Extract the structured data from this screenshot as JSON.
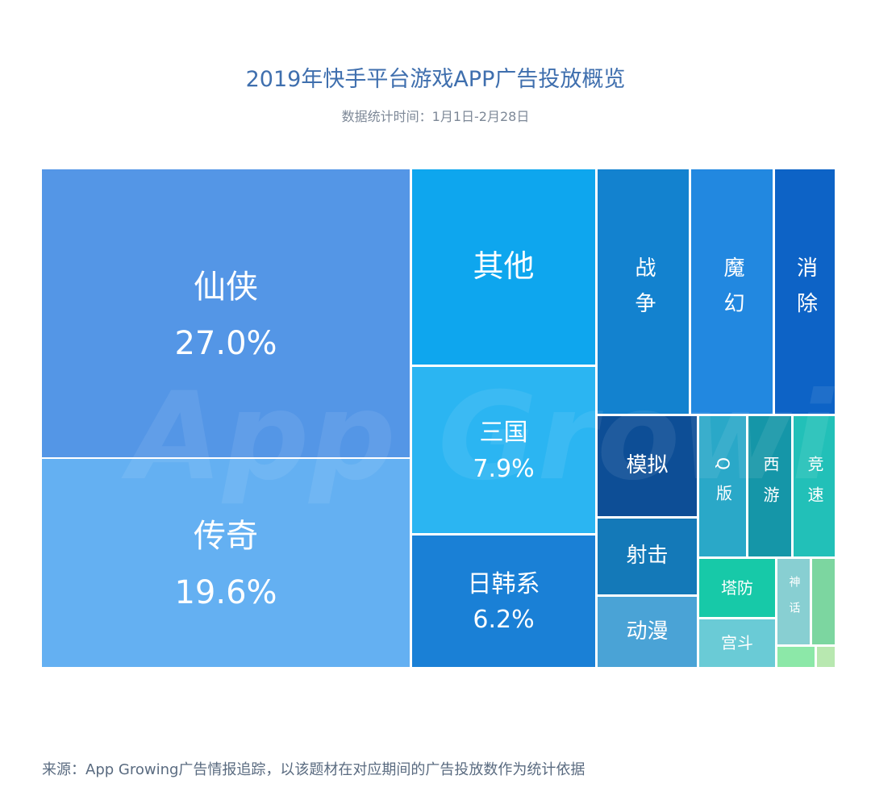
{
  "chart_data": {
    "type": "treemap",
    "title": "2019年快手平台游戏APP广告投放概览",
    "subtitle": "数据统计时间：1月1日-2月28日",
    "unit": "%",
    "items": [
      {
        "name": "仙侠",
        "value": 27.0,
        "label": "27.0%",
        "color": "#5496e6"
      },
      {
        "name": "传奇",
        "value": 19.6,
        "label": "19.6%",
        "color": "#64b0f2"
      },
      {
        "name": "其他",
        "value": 9.1,
        "label": "",
        "color": "#0ea6ee"
      },
      {
        "name": "三国",
        "value": 7.9,
        "label": "7.9%",
        "color": "#2bb5f2"
      },
      {
        "name": "日韩系",
        "value": 6.2,
        "label": "6.2%",
        "color": "#1a80d6"
      },
      {
        "name": "战争",
        "value": 5.6,
        "label": "",
        "color": "#1382cf"
      },
      {
        "name": "魔幻",
        "value": 5.0,
        "label": "",
        "color": "#2288e0"
      },
      {
        "name": "消除",
        "value": 3.7,
        "label": "",
        "color": "#0d63c6"
      },
      {
        "name": "模拟",
        "value": 2.5,
        "label": "",
        "color": "#0d4e96"
      },
      {
        "name": "射击",
        "value": 1.9,
        "label": "",
        "color": "#1479b8"
      },
      {
        "name": "动漫",
        "value": 1.8,
        "label": "",
        "color": "#4aa3d6"
      },
      {
        "name": "Q版",
        "value": 1.7,
        "label": "",
        "color": "#2aa8c8"
      },
      {
        "name": "西游",
        "value": 1.5,
        "label": "",
        "color": "#1596a8"
      },
      {
        "name": "竞速",
        "value": 1.5,
        "label": "",
        "color": "#22c0b8"
      },
      {
        "name": "塔防",
        "value": 1.1,
        "label": "",
        "color": "#17c9a8"
      },
      {
        "name": "宫斗",
        "value": 0.9,
        "label": "",
        "color": "#6acbd6"
      },
      {
        "name": "神话",
        "value": 0.7,
        "label": "",
        "color": "#88cfd2"
      },
      {
        "name": "",
        "value": 0.5,
        "label": "",
        "color": "#7cd6a0"
      },
      {
        "name": "",
        "value": 0.2,
        "label": "",
        "color": "#8ce8a8"
      },
      {
        "name": "",
        "value": 0.1,
        "label": "",
        "color": "#b8e8b0"
      }
    ]
  },
  "watermark": "App Growing",
  "source": "来源：App Growing广告情报追踪，以该题材在对应期间的广告投放数作为统计依据"
}
